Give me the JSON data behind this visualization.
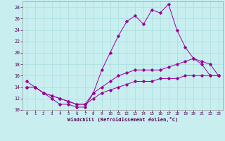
{
  "xlabel": "Windchill (Refroidissement éolien,°C)",
  "bg_color": "#c8eef0",
  "line_color": "#990099",
  "xlim": [
    -0.5,
    23.5
  ],
  "ylim": [
    10,
    29
  ],
  "yticks": [
    10,
    12,
    14,
    16,
    18,
    20,
    22,
    24,
    26,
    28
  ],
  "xticks": [
    0,
    1,
    2,
    3,
    4,
    5,
    6,
    7,
    8,
    9,
    10,
    11,
    12,
    13,
    14,
    15,
    16,
    17,
    18,
    19,
    20,
    21,
    22,
    23
  ],
  "series": [
    {
      "x": [
        0,
        1,
        2,
        3,
        4,
        5,
        6,
        7,
        8,
        9,
        10,
        11,
        12,
        13,
        14,
        15,
        16,
        17,
        18,
        19,
        20,
        21,
        22,
        23
      ],
      "y": [
        15,
        14,
        13,
        12,
        11,
        11,
        10.5,
        10.5,
        13,
        17,
        20,
        23,
        25.5,
        26.5,
        25,
        27.5,
        27,
        28.5,
        24,
        21,
        19,
        18.5,
        18,
        16
      ]
    },
    {
      "x": [
        0,
        1,
        2,
        3,
        4,
        5,
        6,
        7,
        8,
        9,
        10,
        11,
        12,
        13,
        14,
        15,
        16,
        17,
        18,
        19,
        20,
        21,
        22,
        23
      ],
      "y": [
        14,
        14,
        13,
        12.5,
        12,
        11.5,
        11,
        11,
        13,
        14,
        15,
        16,
        16.5,
        17,
        17,
        17,
        17,
        17.5,
        18,
        18.5,
        19,
        18,
        16,
        16
      ]
    },
    {
      "x": [
        0,
        1,
        2,
        3,
        4,
        5,
        6,
        7,
        8,
        9,
        10,
        11,
        12,
        13,
        14,
        15,
        16,
        17,
        18,
        19,
        20,
        21,
        22,
        23
      ],
      "y": [
        14,
        14,
        13,
        12.5,
        12,
        11.5,
        11,
        11,
        12,
        13,
        13.5,
        14,
        14.5,
        15,
        15,
        15,
        15.5,
        15.5,
        15.5,
        16,
        16,
        16,
        16,
        16
      ]
    }
  ]
}
